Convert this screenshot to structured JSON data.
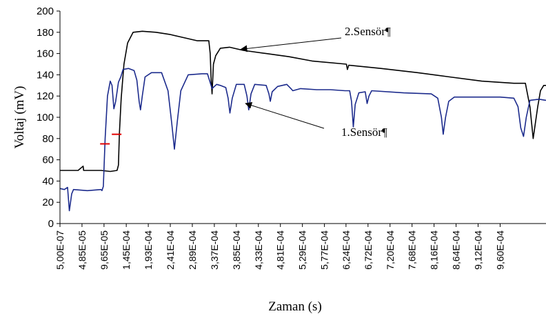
{
  "chart_data": {
    "type": "line",
    "title": "",
    "xlabel": "Zaman (s)",
    "ylabel": "Voltaj (mV)",
    "ylim": [
      0,
      200
    ],
    "yticks": [
      0,
      20,
      40,
      60,
      80,
      100,
      120,
      140,
      160,
      180,
      200
    ],
    "xlim": [
      5e-07,
      0.00106
    ],
    "xtick_labels": [
      "5,00E-07",
      "4,85E-05",
      "9,65E-05",
      "1,45E-04",
      "1,93E-04",
      "2,41E-04",
      "2,89E-04",
      "3,37E-04",
      "3,85E-04",
      "4,33E-04",
      "4,81E-04",
      "5,29E-04",
      "5,77E-04",
      "6,24E-04",
      "6,72E-04",
      "7,20E-04",
      "7,68E-04",
      "8,16E-04",
      "8,64E-04",
      "9,12E-04",
      "9,60E-04"
    ],
    "xtick_values": [
      5e-07,
      4.85e-05,
      9.65e-05,
      0.000145,
      0.000193,
      0.000241,
      0.000289,
      0.000337,
      0.000385,
      0.000433,
      0.000481,
      0.000529,
      0.000577,
      0.000624,
      0.000672,
      0.00072,
      0.000768,
      0.000816,
      0.000864,
      0.000912,
      0.00096
    ],
    "grid": false,
    "series": [
      {
        "name": "2.Sensör¶",
        "color": "#000000",
        "points": [
          [
            5e-07,
            50
          ],
          [
            4e-05,
            50
          ],
          [
            5.1e-05,
            54
          ],
          [
            5.2e-05,
            50
          ],
          [
            9e-05,
            50
          ],
          [
            0.00011,
            49
          ],
          [
            0.000125,
            50
          ],
          [
            0.000128,
            55
          ],
          [
            0.00013,
            85
          ],
          [
            0.000134,
            118
          ],
          [
            0.00014,
            150
          ],
          [
            0.000148,
            170
          ],
          [
            0.00016,
            180
          ],
          [
            0.00018,
            181
          ],
          [
            0.00021,
            180
          ],
          [
            0.00024,
            178
          ],
          [
            0.00027,
            175
          ],
          [
            0.0003,
            172
          ],
          [
            0.000325,
            172
          ],
          [
            0.000328,
            160
          ],
          [
            0.00033,
            135
          ],
          [
            0.000332,
            122
          ],
          [
            0.000335,
            150
          ],
          [
            0.00034,
            158
          ],
          [
            0.00035,
            165
          ],
          [
            0.00037,
            166
          ],
          [
            0.0004,
            163
          ],
          [
            0.00045,
            160
          ],
          [
            0.0005,
            157
          ],
          [
            0.00055,
            153
          ],
          [
            0.000625,
            150
          ],
          [
            0.000627,
            145
          ],
          [
            0.00063,
            149
          ],
          [
            0.0007,
            146
          ],
          [
            0.00078,
            142
          ],
          [
            0.00085,
            138
          ],
          [
            0.00092,
            134
          ],
          [
            0.00099,
            132
          ],
          [
            0.001015,
            132
          ],
          [
            0.001025,
            110
          ],
          [
            0.001032,
            80
          ],
          [
            0.001042,
            110
          ],
          [
            0.001048,
            125
          ],
          [
            0.001055,
            130
          ],
          [
            0.00106,
            130
          ]
        ]
      },
      {
        "name": "1.Sensör¶",
        "color": "#1b2a8c",
        "points": [
          [
            5e-07,
            33
          ],
          [
            1e-05,
            32
          ],
          [
            1.7e-05,
            34
          ],
          [
            2.1e-05,
            12
          ],
          [
            2.6e-05,
            28
          ],
          [
            3e-05,
            32
          ],
          [
            6e-05,
            31
          ],
          [
            9e-05,
            32
          ],
          [
            9.2e-05,
            31
          ],
          [
            9.5e-05,
            35
          ],
          [
            9.9e-05,
            80
          ],
          [
            0.000104,
            120
          ],
          [
            0.00011,
            134
          ],
          [
            0.000114,
            130
          ],
          [
            0.000118,
            108
          ],
          [
            0.000122,
            115
          ],
          [
            0.000128,
            133
          ],
          [
            0.000133,
            138
          ],
          [
            0.000138,
            145
          ],
          [
            0.00015,
            146
          ],
          [
            0.000162,
            144
          ],
          [
            0.000168,
            135
          ],
          [
            0.000173,
            115
          ],
          [
            0.000176,
            107
          ],
          [
            0.00018,
            120
          ],
          [
            0.000186,
            138
          ],
          [
            0.0002,
            142
          ],
          [
            0.000222,
            142
          ],
          [
            0.000236,
            125
          ],
          [
            0.000244,
            95
          ],
          [
            0.00025,
            70
          ],
          [
            0.000256,
            95
          ],
          [
            0.000264,
            125
          ],
          [
            0.00028,
            140
          ],
          [
            0.00031,
            141
          ],
          [
            0.000322,
            141
          ],
          [
            0.000332,
            127
          ],
          [
            0.000342,
            131
          ],
          [
            0.00035,
            130
          ],
          [
            0.000362,
            128
          ],
          [
            0.000367,
            118
          ],
          [
            0.000371,
            104
          ],
          [
            0.000376,
            118
          ],
          [
            0.000385,
            131
          ],
          [
            0.000402,
            131
          ],
          [
            0.000408,
            120
          ],
          [
            0.000412,
            107
          ],
          [
            0.000417,
            122
          ],
          [
            0.000425,
            131
          ],
          [
            0.00045,
            130
          ],
          [
            0.000456,
            122
          ],
          [
            0.000459,
            115
          ],
          [
            0.000463,
            124
          ],
          [
            0.000475,
            129
          ],
          [
            0.000495,
            131
          ],
          [
            0.000504,
            127
          ],
          [
            0.000508,
            125
          ],
          [
            0.000525,
            127
          ],
          [
            0.00056,
            126
          ],
          [
            0.00059,
            126
          ],
          [
            0.000622,
            125
          ],
          [
            0.000632,
            125
          ],
          [
            0.000636,
            115
          ],
          [
            0.00064,
            91
          ],
          [
            0.000644,
            112
          ],
          [
            0.000652,
            123
          ],
          [
            0.000666,
            124
          ],
          [
            0.00067,
            113
          ],
          [
            0.000674,
            120
          ],
          [
            0.00068,
            125
          ],
          [
            0.00075,
            123
          ],
          [
            0.00081,
            122
          ],
          [
            0.000824,
            118
          ],
          [
            0.000832,
            100
          ],
          [
            0.000836,
            84
          ],
          [
            0.000841,
            100
          ],
          [
            0.000848,
            115
          ],
          [
            0.00086,
            119
          ],
          [
            0.0009,
            119
          ],
          [
            0.00096,
            119
          ],
          [
            0.00099,
            118
          ],
          [
            0.000999,
            110
          ],
          [
            0.001005,
            90
          ],
          [
            0.001011,
            82
          ],
          [
            0.001017,
            100
          ],
          [
            0.001025,
            116
          ],
          [
            0.001045,
            117
          ],
          [
            0.00106,
            116
          ]
        ]
      }
    ],
    "red_markers": [
      [
        9.85e-05,
        75
      ],
      [
        0.000124,
        84
      ]
    ],
    "annotations": [
      {
        "text": "2.Sensör¶",
        "target_series": 0,
        "target_point": [
          0.000395,
          164
        ]
      },
      {
        "text": "1.Sensör¶",
        "target_series": 1,
        "target_point": [
          0.000405,
          113
        ]
      }
    ]
  }
}
